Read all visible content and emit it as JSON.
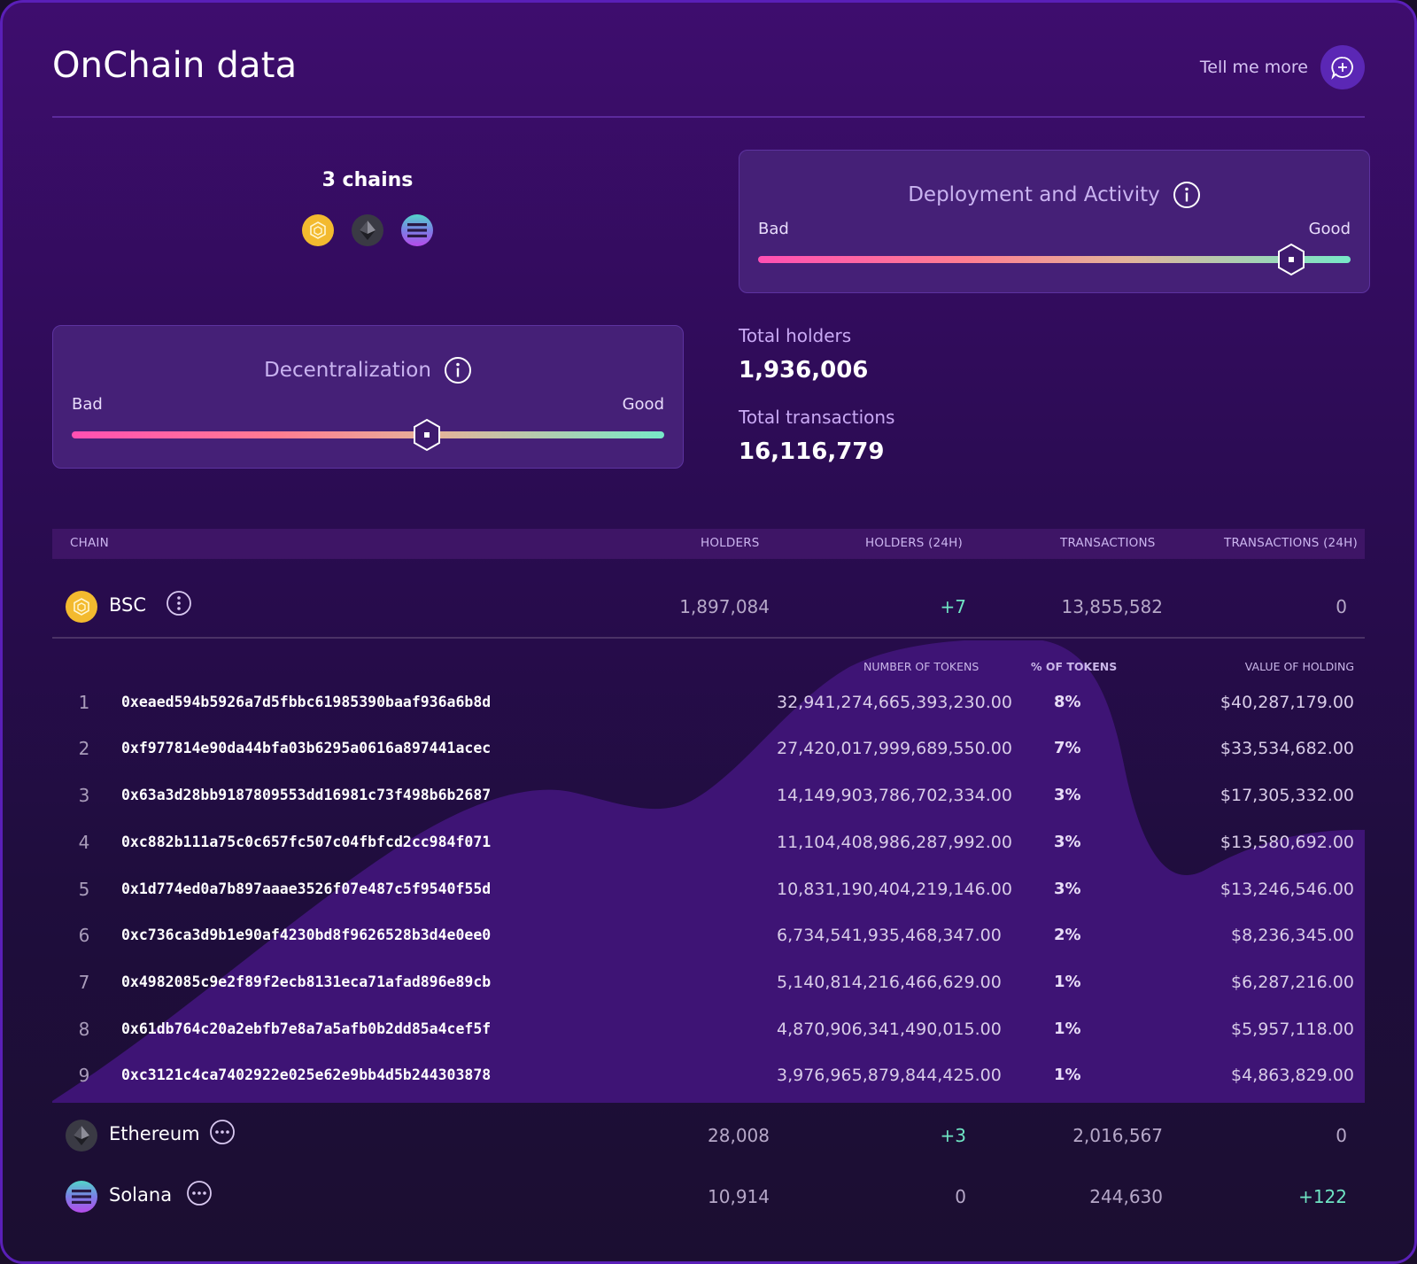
{
  "header": {
    "title": "OnChain data",
    "tell_more_label": "Tell me more"
  },
  "chains_summary": {
    "label": "3 chains",
    "icons": [
      "bsc-coin-icon",
      "ethereum-coin-icon",
      "solana-coin-icon"
    ]
  },
  "deployment_activity": {
    "title": "Deployment and Activity",
    "bad_label": "Bad",
    "good_label": "Good",
    "score_fraction": 0.9
  },
  "decentralization": {
    "title": "Decentralization",
    "bad_label": "Bad",
    "good_label": "Good",
    "score_fraction": 0.6
  },
  "stats": {
    "total_holders_label": "Total holders",
    "total_holders_value": "1,936,006",
    "total_transactions_label": "Total transactions",
    "total_transactions_value": "16,116,779"
  },
  "table": {
    "headers": {
      "chain": "CHAIN",
      "holders": "HOLDERS",
      "holders_24h": "HOLDERS (24H)",
      "transactions": "TRANSACTIONS",
      "transactions_24h": "TRANSACTIONS (24H)"
    },
    "chains": [
      {
        "name": "BSC",
        "holders": "1,897,084",
        "holders_24h": "+7",
        "transactions": "13,855,582",
        "transactions_24h": "0"
      },
      {
        "name": "Ethereum",
        "holders": "28,008",
        "holders_24h": "+3",
        "transactions": "2,016,567",
        "transactions_24h": "0"
      },
      {
        "name": "Solana",
        "holders": "10,914",
        "holders_24h": "0",
        "transactions": "244,630",
        "transactions_24h": "+122"
      }
    ]
  },
  "top_holders": {
    "headers": {
      "tokens": "NUMBER OF TOKENS",
      "pct": "% OF TOKENS",
      "value": "VALUE OF HOLDING"
    },
    "rows": [
      {
        "rank": "1",
        "address": "0xeaed594b5926a7d5fbbc61985390baaf936a6b8d",
        "tokens": "32,941,274,665,393,230.00",
        "pct": "8%",
        "value": "$40,287,179.00"
      },
      {
        "rank": "2",
        "address": "0xf977814e90da44bfa03b6295a0616a897441acec",
        "tokens": "27,420,017,999,689,550.00",
        "pct": "7%",
        "value": "$33,534,682.00"
      },
      {
        "rank": "3",
        "address": "0x63a3d28bb9187809553dd16981c73f498b6b2687",
        "tokens": "14,149,903,786,702,334.00",
        "pct": "3%",
        "value": "$17,305,332.00"
      },
      {
        "rank": "4",
        "address": "0xc882b111a75c0c657fc507c04fbfcd2cc984f071",
        "tokens": "11,104,408,986,287,992.00",
        "pct": "3%",
        "value": "$13,580,692.00"
      },
      {
        "rank": "5",
        "address": "0x1d774ed0a7b897aaae3526f07e487c5f9540f55d",
        "tokens": "10,831,190,404,219,146.00",
        "pct": "3%",
        "value": "$13,246,546.00"
      },
      {
        "rank": "6",
        "address": "0xc736ca3d9b1e90af4230bd8f9626528b3d4e0ee0",
        "tokens": "6,734,541,935,468,347.00",
        "pct": "2%",
        "value": "$8,236,345.00"
      },
      {
        "rank": "7",
        "address": "0x4982085c9e2f89f2ecb8131eca71afad896e89cb",
        "tokens": "5,140,814,216,466,629.00",
        "pct": "1%",
        "value": "$6,287,216.00"
      },
      {
        "rank": "8",
        "address": "0x61db764c20a2ebfb7e8a7a5afb0b2dd85a4cef5f",
        "tokens": "4,870,906,341,490,015.00",
        "pct": "1%",
        "value": "$5,957,118.00"
      },
      {
        "rank": "9",
        "address": "0xc3121c4ca7402922e025e62e9bb4d5b244303878",
        "tokens": "3,976,965,879,844,425.00",
        "pct": "1%",
        "value": "$4,863,829.00"
      }
    ]
  },
  "colors": {
    "positive": "#6fe4c3",
    "accent": "#5b27b5",
    "score_gradient": [
      "#ff4fb3",
      "#e3b39a",
      "#77e8c8"
    ]
  }
}
